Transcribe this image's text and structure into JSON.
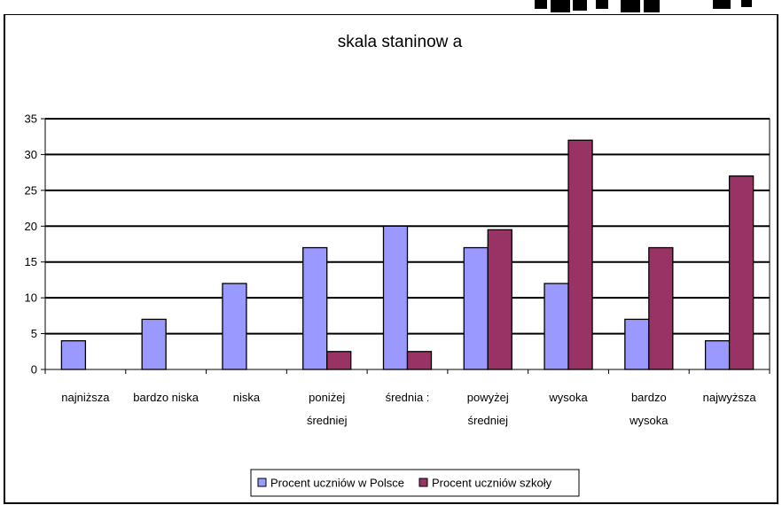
{
  "chart_data": {
    "type": "bar",
    "title": "skala staninow a",
    "xlabel": "",
    "ylabel": "",
    "ylim": [
      0,
      35
    ],
    "yticks": [
      0,
      5,
      10,
      15,
      20,
      25,
      30,
      35
    ],
    "grid": true,
    "legend_position": "bottom",
    "categories": [
      [
        "najniższa"
      ],
      [
        "bardzo niska"
      ],
      [
        "niska"
      ],
      [
        "poniżej",
        "średniej"
      ],
      [
        "średnia :"
      ],
      [
        "powyżej",
        "średniej"
      ],
      [
        "wysoka"
      ],
      [
        "bardzo",
        "wysoka"
      ],
      [
        "najwyższa"
      ]
    ],
    "series": [
      {
        "name": "Procent uczniów w Polsce",
        "color": "#9999ff",
        "values": [
          4,
          7,
          12,
          17,
          20,
          17,
          12,
          7,
          4
        ]
      },
      {
        "name": "Procent uczniów szkoły",
        "color": "#993366",
        "values": [
          0,
          0,
          0,
          2.5,
          2.5,
          19.5,
          32,
          17,
          27
        ]
      }
    ]
  }
}
